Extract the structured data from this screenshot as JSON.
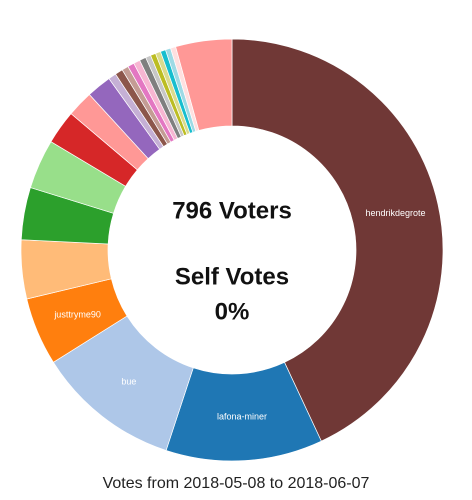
{
  "chart_data": {
    "type": "donut",
    "categories": [
      "hendrikdegrote",
      "lafona-miner",
      "bue",
      "justtryme90",
      null,
      null,
      null,
      null,
      null,
      null,
      null,
      null,
      null,
      null,
      null,
      null,
      null,
      null,
      null,
      null,
      null,
      null,
      null
    ],
    "values": [
      43,
      12,
      11,
      5.2,
      4.5,
      4,
      3.8,
      2.6,
      2,
      1.9,
      0.6,
      0.6,
      0.5,
      0.5,
      0.5,
      0.5,
      0.4,
      0.4,
      0.4,
      0.4,
      0.4,
      0.4,
      4.3
    ],
    "colors": [
      "#703836",
      "#1f77b4",
      "#aec7e8",
      "#ff7f0e",
      "#ffbb78",
      "#2ca02c",
      "#98df8a",
      "#d62728",
      "#ff9896",
      "#9467bd",
      "#c5b0d5",
      "#8c564b",
      "#c49c94",
      "#e377c2",
      "#f7b6d2",
      "#7f7f7f",
      "#c7c7c7",
      "#bcbd22",
      "#dbdb8d",
      "#17becf",
      "#9edae5",
      "#ffe0e0",
      "#ff9896"
    ],
    "center_text": [
      "796 Voters",
      "Self Votes",
      "0%"
    ],
    "caption": "Votes from 2018-05-08 to 2018-06-07"
  }
}
